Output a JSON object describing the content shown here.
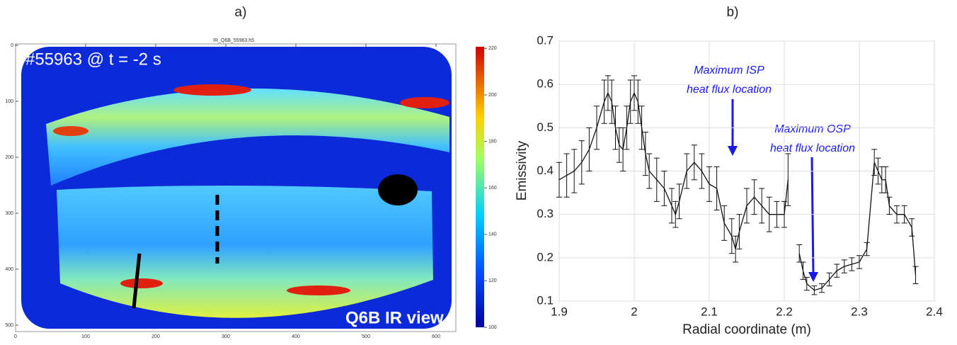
{
  "panel_a": {
    "label": "a)",
    "file_name": "IR_Q6B_55963.h5",
    "shot_text": "#55963 @ t = -2 s",
    "view_text": "Q6B IR view",
    "xticks": [
      0,
      100,
      200,
      300,
      400,
      500,
      600
    ],
    "yticks": [
      0,
      100,
      200,
      300,
      400,
      500
    ],
    "colorbar_ticks": [
      100,
      120,
      140,
      160,
      180,
      200,
      220
    ]
  },
  "chart_data": {
    "type": "line",
    "title": "b)",
    "x_label": "Radial coordinate (m)",
    "y_label": "Emissivity",
    "annotations": [
      "Maximum ISP heat flux location",
      "Maximum OSP heat flux location"
    ],
    "xlim": [
      1.9,
      2.4
    ],
    "ylim": [
      0.1,
      0.7
    ],
    "xticks": [
      1.9,
      2,
      2.1,
      2.2,
      2.3,
      2.4
    ],
    "yticks": [
      0.1,
      0.2,
      0.3,
      0.4,
      0.5,
      0.6,
      0.7
    ],
    "grid": true,
    "x": [
      1.9,
      1.91,
      1.92,
      1.93,
      1.94,
      1.95,
      1.96,
      1.965,
      1.97,
      1.975,
      1.98,
      1.985,
      1.99,
      1.995,
      2.0,
      2.005,
      2.01,
      2.015,
      2.02,
      2.03,
      2.04,
      2.05,
      2.055,
      2.06,
      2.07,
      2.08,
      2.09,
      2.1,
      2.11,
      2.12,
      2.13,
      2.135,
      2.14,
      2.15,
      2.16,
      2.17,
      2.18,
      2.19,
      2.2,
      2.205,
      2.215,
      2.22,
      2.225,
      2.23,
      2.24,
      2.25,
      2.26,
      2.27,
      2.28,
      2.29,
      2.3,
      2.31,
      2.32,
      2.325,
      2.33,
      2.335,
      2.34,
      2.35,
      2.36,
      2.37,
      2.375
    ],
    "series": [
      {
        "name": "Emissivity",
        "color": "#111111",
        "values": [
          0.38,
          0.39,
          0.4,
          0.42,
          0.45,
          0.5,
          0.56,
          0.58,
          0.56,
          0.5,
          0.46,
          0.45,
          0.5,
          0.56,
          0.58,
          0.56,
          0.5,
          0.44,
          0.4,
          0.38,
          0.36,
          0.32,
          0.3,
          0.33,
          0.4,
          0.42,
          0.4,
          0.37,
          0.36,
          0.28,
          0.25,
          0.22,
          0.26,
          0.32,
          0.34,
          0.32,
          0.3,
          0.3,
          0.3,
          0.38,
          null,
          0.21,
          0.17,
          0.14,
          0.125,
          0.13,
          0.15,
          0.17,
          0.18,
          0.185,
          0.19,
          0.22,
          0.42,
          0.4,
          0.38,
          0.38,
          0.32,
          0.3,
          0.3,
          0.27,
          0.16
        ],
        "errors": [
          0.04,
          0.05,
          0.05,
          0.05,
          0.05,
          0.05,
          0.05,
          0.04,
          0.05,
          0.05,
          0.04,
          0.05,
          0.05,
          0.05,
          0.04,
          0.05,
          0.05,
          0.05,
          0.04,
          0.05,
          0.04,
          0.04,
          0.03,
          0.04,
          0.04,
          0.04,
          0.04,
          0.04,
          0.05,
          0.04,
          0.04,
          0.03,
          0.04,
          0.04,
          0.04,
          0.04,
          0.04,
          0.03,
          0.03,
          0.06,
          null,
          0.02,
          0.02,
          0.015,
          0.01,
          0.01,
          0.015,
          0.015,
          0.015,
          0.015,
          0.015,
          0.015,
          0.03,
          0.03,
          0.03,
          0.03,
          0.02,
          0.02,
          0.02,
          0.02,
          0.02
        ]
      }
    ]
  }
}
